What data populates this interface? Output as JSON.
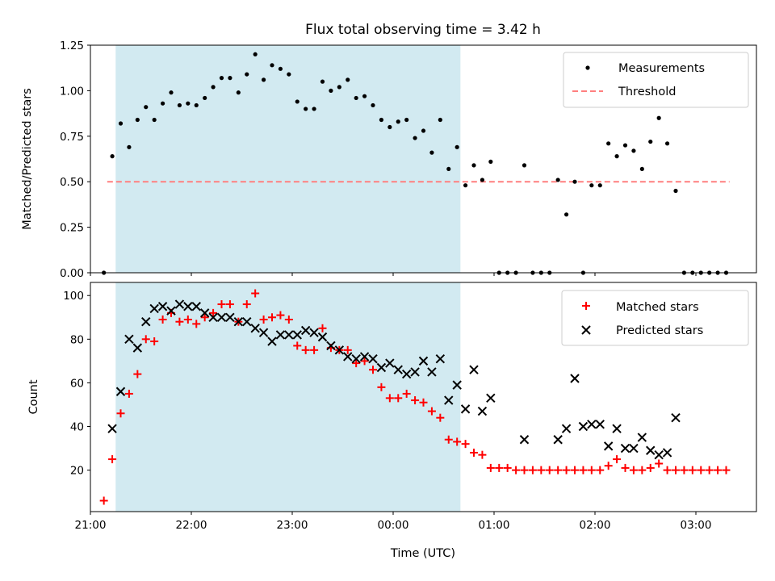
{
  "figure": {
    "title": "Flux total observing time = 3.42 h",
    "xlabel": "Time (UTC)"
  },
  "colors": {
    "shade": "#add8e6",
    "measurements": "#000000",
    "threshold": "#ff7f7f",
    "matched": "#ff0000",
    "predicted": "#000000"
  },
  "chart_data": [
    {
      "type": "scatter",
      "ylabel": "Matched/Predicted stars",
      "xlim": [
        "21:00",
        "03:36"
      ],
      "ylim": [
        0,
        1.25
      ],
      "yticks": [
        0.0,
        0.25,
        0.5,
        0.75,
        1.0,
        1.25
      ],
      "ytick_labels": [
        "0.00",
        "0.25",
        "0.50",
        "0.75",
        "1.00",
        "1.25"
      ],
      "shaded_interval": [
        "21:15",
        "00:40"
      ],
      "legend": {
        "position": "upper right",
        "entries": [
          "Measurements",
          "Threshold"
        ]
      },
      "threshold": {
        "name": "Threshold",
        "y": 0.5,
        "x_range": [
          "21:10",
          "03:20"
        ]
      },
      "series": [
        {
          "name": "Measurements",
          "x": [
            "21:08",
            "21:13",
            "21:18",
            "21:23",
            "21:28",
            "21:33",
            "21:38",
            "21:43",
            "21:48",
            "21:53",
            "21:58",
            "22:03",
            "22:08",
            "22:13",
            "22:18",
            "22:23",
            "22:28",
            "22:33",
            "22:38",
            "22:43",
            "22:48",
            "22:53",
            "22:58",
            "23:03",
            "23:08",
            "23:13",
            "23:18",
            "23:23",
            "23:28",
            "23:33",
            "23:38",
            "23:43",
            "23:48",
            "23:53",
            "23:58",
            "00:03",
            "00:08",
            "00:13",
            "00:18",
            "00:23",
            "00:28",
            "00:33",
            "00:38",
            "00:43",
            "00:48",
            "00:53",
            "00:58",
            "01:03",
            "01:08",
            "01:13",
            "01:18",
            "01:23",
            "01:28",
            "01:33",
            "01:38",
            "01:43",
            "01:48",
            "01:53",
            "01:58",
            "02:03",
            "02:08",
            "02:13",
            "02:18",
            "02:23",
            "02:28",
            "02:33",
            "02:38",
            "02:43",
            "02:48",
            "02:53",
            "02:58",
            "03:03",
            "03:08",
            "03:13",
            "03:18"
          ],
          "y": [
            0.0,
            0.64,
            0.82,
            0.69,
            0.84,
            0.91,
            0.84,
            0.93,
            0.99,
            0.92,
            0.93,
            0.92,
            0.96,
            1.02,
            1.07,
            1.07,
            0.99,
            1.09,
            1.2,
            1.06,
            1.14,
            1.12,
            1.09,
            0.94,
            0.9,
            0.9,
            1.05,
            1.0,
            1.02,
            1.06,
            0.96,
            0.97,
            0.92,
            0.84,
            0.8,
            0.83,
            0.84,
            0.74,
            0.78,
            0.66,
            0.84,
            0.57,
            0.69,
            0.48,
            0.59,
            0.51,
            0.61,
            0.0,
            0.0,
            0.0,
            0.59,
            0.0,
            0.0,
            0.0,
            0.51,
            0.32,
            0.5,
            0.0,
            0.48,
            0.48,
            0.71,
            0.64,
            0.7,
            0.67,
            0.57,
            0.72,
            0.85,
            0.71,
            0.45,
            0.0,
            0.0,
            0.0,
            0.0,
            0.0,
            0.0
          ]
        }
      ]
    },
    {
      "type": "scatter",
      "ylabel": "Count",
      "xlim": [
        "21:00",
        "03:36"
      ],
      "ylim": [
        1,
        106
      ],
      "yticks": [
        20,
        40,
        60,
        80,
        100
      ],
      "ytick_labels": [
        "20",
        "40",
        "60",
        "80",
        "100"
      ],
      "xtick_labels": [
        "21:00",
        "22:00",
        "23:00",
        "00:00",
        "01:00",
        "02:00",
        "03:00"
      ],
      "shaded_interval": [
        "21:15",
        "00:40"
      ],
      "legend": {
        "position": "upper right",
        "entries": [
          "Matched stars",
          "Predicted stars"
        ]
      },
      "series": [
        {
          "name": "Matched stars",
          "marker": "+",
          "x": [
            "21:08",
            "21:13",
            "21:18",
            "21:23",
            "21:28",
            "21:33",
            "21:38",
            "21:43",
            "21:48",
            "21:53",
            "21:58",
            "22:03",
            "22:08",
            "22:13",
            "22:18",
            "22:23",
            "22:28",
            "22:33",
            "22:38",
            "22:43",
            "22:48",
            "22:53",
            "22:58",
            "23:03",
            "23:08",
            "23:13",
            "23:18",
            "23:23",
            "23:28",
            "23:33",
            "23:38",
            "23:43",
            "23:48",
            "23:53",
            "23:58",
            "00:03",
            "00:08",
            "00:13",
            "00:18",
            "00:23",
            "00:28",
            "00:33",
            "00:38",
            "00:43",
            "00:48",
            "00:53",
            "00:58",
            "01:03",
            "01:08",
            "01:13",
            "01:18",
            "01:23",
            "01:28",
            "01:33",
            "01:38",
            "01:43",
            "01:48",
            "01:53",
            "01:58",
            "02:03",
            "02:08",
            "02:13",
            "02:18",
            "02:23",
            "02:28",
            "02:33",
            "02:38",
            "02:43",
            "02:48",
            "02:53",
            "02:58",
            "03:03",
            "03:08",
            "03:13",
            "03:18"
          ],
          "y": [
            6,
            25,
            46,
            55,
            64,
            80,
            79,
            89,
            92,
            88,
            89,
            87,
            90,
            92,
            96,
            96,
            88,
            96,
            101,
            89,
            90,
            91,
            89,
            77,
            75,
            75,
            85,
            76,
            75,
            75,
            69,
            70,
            66,
            58,
            53,
            53,
            55,
            52,
            51,
            47,
            44,
            34,
            33,
            32,
            28,
            27,
            21,
            21,
            21,
            20,
            20,
            20,
            20,
            20,
            20,
            20,
            20,
            20,
            20,
            20,
            22,
            25,
            21,
            20,
            20,
            21,
            23,
            20,
            20,
            20,
            20,
            20,
            20,
            20,
            20
          ]
        },
        {
          "name": "Predicted stars",
          "marker": "x",
          "x": [
            "21:13",
            "21:18",
            "21:23",
            "21:28",
            "21:33",
            "21:38",
            "21:43",
            "21:48",
            "21:53",
            "21:58",
            "22:03",
            "22:08",
            "22:13",
            "22:18",
            "22:23",
            "22:28",
            "22:33",
            "22:38",
            "22:43",
            "22:48",
            "22:53",
            "22:58",
            "23:03",
            "23:08",
            "23:13",
            "23:18",
            "23:23",
            "23:28",
            "23:33",
            "23:38",
            "23:43",
            "23:48",
            "23:53",
            "23:58",
            "00:03",
            "00:08",
            "00:13",
            "00:18",
            "00:23",
            "00:28",
            "00:33",
            "00:38",
            "00:43",
            "00:48",
            "00:53",
            "00:58",
            "01:18",
            "01:38",
            "01:43",
            "01:48",
            "01:53",
            "01:58",
            "02:03",
            "02:08",
            "02:13",
            "02:18",
            "02:23",
            "02:28",
            "02:33",
            "02:38",
            "02:43",
            "02:48"
          ],
          "y": [
            39,
            56,
            80,
            76,
            88,
            94,
            95,
            93,
            96,
            95,
            95,
            92,
            90,
            90,
            90,
            88,
            88,
            85,
            83,
            79,
            82,
            82,
            82,
            84,
            83,
            81,
            77,
            75,
            72,
            71,
            72,
            71,
            67,
            69,
            66,
            64,
            65,
            70,
            65,
            71,
            52,
            59,
            48,
            66,
            47,
            53,
            34,
            34,
            39,
            62,
            40,
            41,
            41,
            31,
            39,
            30,
            30,
            35,
            29,
            27,
            28,
            44
          ]
        }
      ]
    }
  ]
}
